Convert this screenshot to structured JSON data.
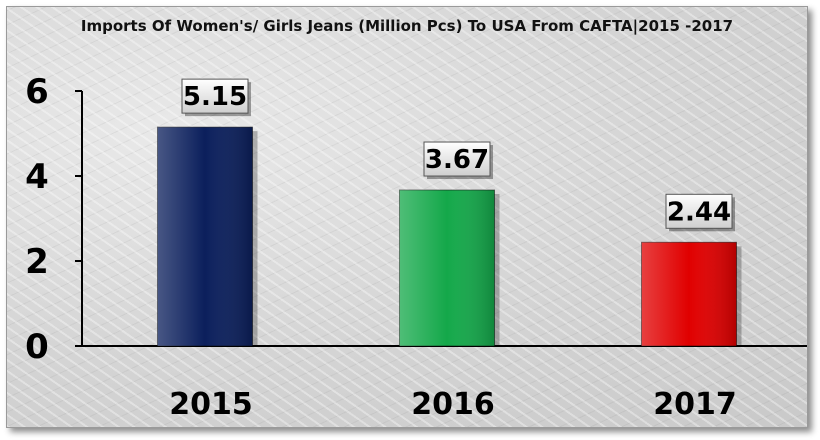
{
  "chart_data": {
    "type": "bar",
    "title": "Imports Of Women's/ Girls Jeans (Million Pcs) To USA From CAFTA|2015 -2017",
    "categories": [
      "2015",
      "2016",
      "2017"
    ],
    "values": [
      5.15,
      3.67,
      2.44
    ],
    "data_labels": [
      "5.15",
      "3.67",
      "2.44"
    ],
    "yticks": [
      "0",
      "2",
      "4",
      "6"
    ],
    "ylim": [
      0,
      6
    ],
    "xlabel": "",
    "ylabel": "",
    "grid": false,
    "colors": {
      "2015": "#0b1f5c",
      "2016": "#14a84a",
      "2017": "#e00000"
    }
  }
}
